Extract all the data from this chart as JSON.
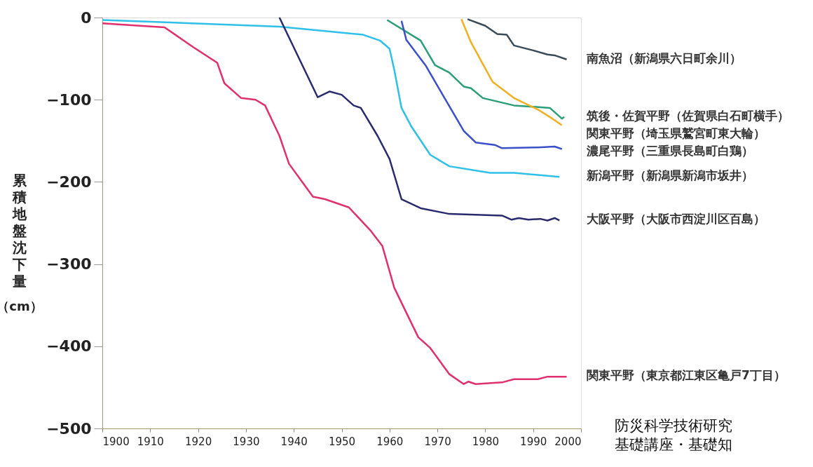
{
  "chart_data": {
    "type": "line",
    "ylabel": "累積地盤沈下量（cm）",
    "xlim": [
      1900,
      2000
    ],
    "ylim": [
      -500,
      0
    ],
    "xticks": [
      1900,
      1910,
      1920,
      1930,
      1940,
      1950,
      1960,
      1970,
      1980,
      1990,
      2000
    ],
    "yticks": [
      0,
      -100,
      -200,
      -300,
      -400,
      -500
    ],
    "grid": false,
    "annotations": [
      "防災科学技術研究",
      "基礎講座・基礎知"
    ],
    "series": [
      {
        "name": "南魚沼（新潟県六日町余川）",
        "color": "#3a4a58",
        "x": [
          1976.3,
          1980,
          1982.5,
          1984.5,
          1986,
          1990,
          1993,
          1994.5,
          1997
        ],
        "values": [
          -2,
          -10,
          -20,
          -21,
          -34,
          -40,
          -45,
          -46,
          -51
        ]
      },
      {
        "name": "筑後・佐賀平野（佐賀県白石町横手）",
        "color": "#2a9e78",
        "x": [
          1959.5,
          1966.5,
          1969.5,
          1972.5,
          1975.5,
          1977,
          1979.5,
          1986,
          1993.5,
          1996,
          1996.5
        ],
        "values": [
          -3,
          -28,
          -58,
          -67,
          -84,
          -86,
          -98,
          -107,
          -110,
          -123,
          -121
        ]
      },
      {
        "name": "関東平野（埼玉県鷲宮町東大輪）",
        "color": "#f0b020",
        "x": [
          1975,
          1977,
          1981.5,
          1986,
          1991,
          1994,
          1996
        ],
        "values": [
          -2,
          -30,
          -78,
          -98,
          -112,
          -123,
          -131
        ]
      },
      {
        "name": "濃尾平野（三重県長島町白鶏）",
        "color": "#3b4fc8",
        "x": [
          1962.5,
          1963.5,
          1967.5,
          1971.5,
          1975.5,
          1978,
          1982,
          1983.5,
          1991,
          1994.5,
          1996
        ],
        "values": [
          -4,
          -27,
          -58,
          -98,
          -138,
          -152,
          -155,
          -159,
          -158,
          -157,
          -160
        ]
      },
      {
        "name": "新潟平野（新潟県新潟市坂井）",
        "color": "#2ec0e8",
        "x": [
          1900,
          1937,
          1954.5,
          1958,
          1960,
          1961,
          1962.5,
          1964.5,
          1968.5,
          1972.5,
          1981,
          1986,
          1995.5
        ],
        "values": [
          -3,
          -11,
          -21,
          -28,
          -38,
          -64,
          -110,
          -132,
          -167,
          -181,
          -189,
          -189,
          -194
        ]
      },
      {
        "name": "大阪平野（大阪市西淀川区百島）",
        "color": "#2a2a6e",
        "x": [
          1937,
          1945,
          1947.5,
          1950,
          1952.5,
          1954,
          1957.5,
          1960,
          1962.5,
          1966.5,
          1972.5,
          1983.5,
          1985.5,
          1987,
          1989,
          1991.5,
          1993,
          1994.5,
          1995.5
        ],
        "values": [
          0,
          -97,
          -90,
          -94,
          -107,
          -110,
          -144,
          -172,
          -221,
          -232,
          -239,
          -241,
          -246,
          -244,
          -246,
          -245,
          -247,
          -244,
          -247
        ]
      },
      {
        "name": "関東平野（東京都江東区亀戸7丁目）",
        "color": "#e0306e",
        "x": [
          1900,
          1905,
          1913,
          1919,
          1924,
          1925.5,
          1929,
          1932,
          1934,
          1937,
          1939,
          1944,
          1946.5,
          1951.5,
          1956,
          1958.5,
          1961,
          1966,
          1968.5,
          1972.5,
          1975.5,
          1976.5,
          1978,
          1983.5,
          1986,
          1991,
          1993,
          1997
        ],
        "values": [
          -7,
          -9,
          -12,
          -36,
          -55,
          -80,
          -98,
          -100,
          -107,
          -144,
          -178,
          -218,
          -221,
          -231,
          -259,
          -278,
          -329,
          -389,
          -402,
          -434,
          -446,
          -443,
          -446,
          -444,
          -440,
          -440,
          -437,
          -437
        ]
      }
    ]
  }
}
